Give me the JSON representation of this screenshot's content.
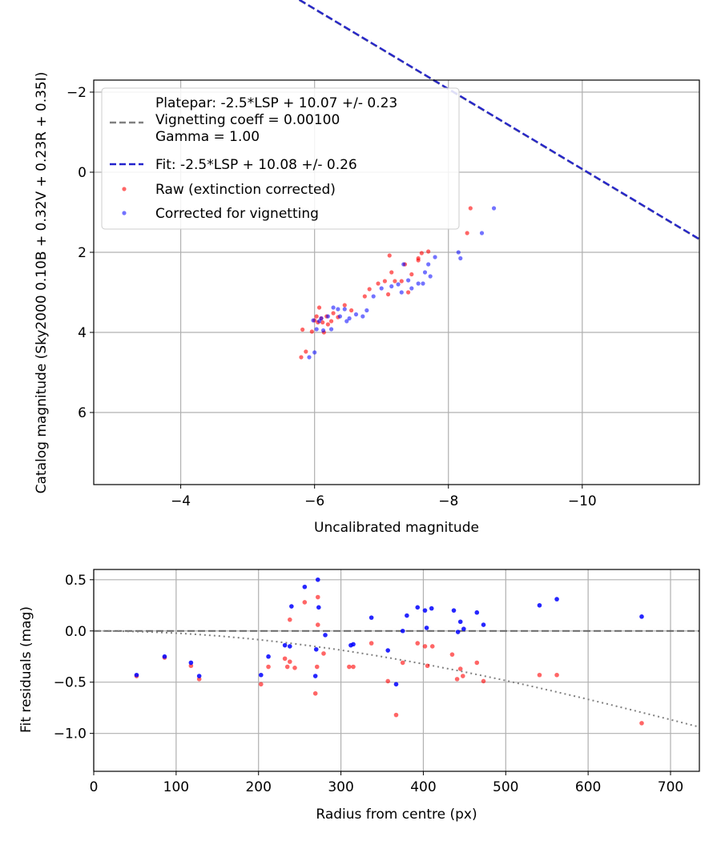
{
  "colors": {
    "raw": "#ff0000",
    "corrected": "#0000ff",
    "corrected_top": "#3333ff",
    "platepar_line": "#808080",
    "fit_line": "#2222cc",
    "grid": "#b0b0b0",
    "zero_line": "#555555"
  },
  "chart_data": [
    {
      "type": "scatter",
      "xlabel": "Uncalibrated magnitude",
      "ylabel": "Catalog magnitude (Sky2000 0.10B + 0.32V + 0.23R + 0.35I)",
      "xlim": [
        -2.7,
        -11.75
      ],
      "ylim": [
        7.8,
        -2.3
      ],
      "x_inverted": true,
      "y_inverted": true,
      "xticks": [
        -4,
        -6,
        -8,
        -10
      ],
      "xtick_labels": [
        "−4",
        "−6",
        "−8",
        "−10"
      ],
      "yticks": [
        -2,
        0,
        2,
        4,
        6
      ],
      "ytick_labels": [
        "−2",
        "0",
        "2",
        "4",
        "6"
      ],
      "grid": true,
      "legend": {
        "placement": "top-left",
        "entries": [
          {
            "kind": "line-multi",
            "lines": [
              "Platepar: -2.5*LSP + 10.07 +/- 0.23",
              "Vignetting coeff = 0.00100",
              "Gamma = 1.00"
            ],
            "color": "#808080",
            "dash": true
          },
          {
            "kind": "line",
            "label": "Fit: -2.5*LSP + 10.08 +/- 0.26",
            "color": "#2222cc",
            "dash": true
          },
          {
            "kind": "marker",
            "label": "Raw (extinction corrected)",
            "color": "#ff0000"
          },
          {
            "kind": "marker",
            "label": "Corrected for vignetting",
            "color": "#0000ff"
          }
        ]
      },
      "lines": [
        {
          "name": "Platepar: -2.5*LSP + 10.07 +/- 0.23",
          "slope": -1,
          "intercept": -10.07,
          "x": [
            -2.7,
            -11.75
          ],
          "color": "#808080",
          "style": "dashed"
        },
        {
          "name": "Fit: -2.5*LSP + 10.08 +/- 0.26",
          "slope": -1,
          "intercept": -10.08,
          "x": [
            -2.7,
            -11.75
          ],
          "color": "#2222cc",
          "style": "dashed"
        }
      ],
      "series": [
        {
          "name": "Raw (extinction corrected)",
          "color": "#ff0000",
          "points": [
            [
              -5.8,
              4.62
            ],
            [
              -5.87,
              4.48
            ],
            [
              -5.82,
              3.93
            ],
            [
              -5.96,
              3.98
            ],
            [
              -6.0,
              3.7
            ],
            [
              -6.03,
              3.6
            ],
            [
              -6.05,
              3.75
            ],
            [
              -6.07,
              3.38
            ],
            [
              -6.1,
              3.65
            ],
            [
              -6.12,
              3.75
            ],
            [
              -6.14,
              4.0
            ],
            [
              -6.18,
              3.6
            ],
            [
              -6.2,
              3.8
            ],
            [
              -6.25,
              3.72
            ],
            [
              -6.28,
              3.52
            ],
            [
              -6.35,
              3.62
            ],
            [
              -6.45,
              3.32
            ],
            [
              -6.55,
              3.45
            ],
            [
              -6.75,
              3.1
            ],
            [
              -6.82,
              2.92
            ],
            [
              -6.95,
              2.78
            ],
            [
              -7.05,
              2.72
            ],
            [
              -7.1,
              3.05
            ],
            [
              -7.12,
              2.08
            ],
            [
              -7.15,
              2.5
            ],
            [
              -7.2,
              2.72
            ],
            [
              -7.3,
              2.72
            ],
            [
              -7.35,
              2.3
            ],
            [
              -7.4,
              3.0
            ],
            [
              -7.45,
              2.55
            ],
            [
              -7.55,
              2.2
            ],
            [
              -7.55,
              2.15
            ],
            [
              -7.6,
              2.02
            ],
            [
              -7.7,
              1.98
            ],
            [
              -8.28,
              1.52
            ],
            [
              -8.33,
              0.9
            ]
          ]
        },
        {
          "name": "Corrected for vignetting",
          "color": "#0000ff",
          "points": [
            [
              -5.92,
              4.62
            ],
            [
              -5.98,
              3.7
            ],
            [
              -6.0,
              4.5
            ],
            [
              -6.03,
              3.92
            ],
            [
              -6.07,
              3.72
            ],
            [
              -6.1,
              3.65
            ],
            [
              -6.13,
              3.95
            ],
            [
              -6.2,
              3.6
            ],
            [
              -6.25,
              3.92
            ],
            [
              -6.28,
              3.38
            ],
            [
              -6.35,
              3.42
            ],
            [
              -6.38,
              3.6
            ],
            [
              -6.45,
              3.42
            ],
            [
              -6.48,
              3.72
            ],
            [
              -6.52,
              3.65
            ],
            [
              -6.62,
              3.55
            ],
            [
              -6.72,
              3.6
            ],
            [
              -6.78,
              3.45
            ],
            [
              -6.88,
              3.1
            ],
            [
              -7.0,
              2.9
            ],
            [
              -7.15,
              2.85
            ],
            [
              -7.25,
              2.8
            ],
            [
              -7.3,
              3.0
            ],
            [
              -7.33,
              2.3
            ],
            [
              -7.4,
              2.7
            ],
            [
              -7.45,
              2.9
            ],
            [
              -7.55,
              2.78
            ],
            [
              -7.62,
              2.78
            ],
            [
              -7.65,
              2.5
            ],
            [
              -7.7,
              2.3
            ],
            [
              -7.73,
              2.6
            ],
            [
              -7.8,
              2.12
            ],
            [
              -8.15,
              2.0
            ],
            [
              -8.18,
              2.15
            ],
            [
              -8.5,
              1.52
            ],
            [
              -8.68,
              0.9
            ]
          ]
        }
      ]
    },
    {
      "type": "scatter",
      "xlabel": "Radius from centre (px)",
      "ylabel": "Fit residuals (mag)",
      "xlim": [
        0,
        735
      ],
      "ylim": [
        -1.37,
        0.6
      ],
      "xticks": [
        0,
        100,
        200,
        300,
        400,
        500,
        600,
        700
      ],
      "xtick_labels": [
        "0",
        "100",
        "200",
        "300",
        "400",
        "500",
        "600",
        "700"
      ],
      "yticks": [
        0.5,
        0.0,
        -0.5,
        -1.0
      ],
      "ytick_labels": [
        "0.5",
        "0.0",
        "−0.5",
        "−1.0"
      ],
      "grid": true,
      "lines": [
        {
          "name": "zero",
          "y": 0.0,
          "color": "#555555",
          "style": "dashed"
        },
        {
          "name": "vignetting curve",
          "color": "#808080",
          "style": "dotted",
          "model": "-2.5*log10(cos^4(atan(0.00100*r)))"
        }
      ],
      "series": [
        {
          "name": "Raw (extinction corrected)",
          "color": "#ff0000",
          "points": [
            [
              52,
              -0.44
            ],
            [
              86,
              -0.26
            ],
            [
              118,
              -0.34
            ],
            [
              128,
              -0.47
            ],
            [
              203,
              -0.52
            ],
            [
              212,
              -0.35
            ],
            [
              232,
              -0.27
            ],
            [
              235,
              -0.35
            ],
            [
              238,
              -0.3
            ],
            [
              238,
              0.11
            ],
            [
              244,
              -0.36
            ],
            [
              256,
              0.28
            ],
            [
              269,
              -0.61
            ],
            [
              271,
              -0.35
            ],
            [
              272,
              0.33
            ],
            [
              272,
              0.06
            ],
            [
              279,
              -0.22
            ],
            [
              310,
              -0.35
            ],
            [
              315,
              -0.35
            ],
            [
              337,
              -0.12
            ],
            [
              357,
              -0.49
            ],
            [
              367,
              -0.82
            ],
            [
              375,
              -0.31
            ],
            [
              393,
              -0.12
            ],
            [
              402,
              -0.15
            ],
            [
              405,
              -0.34
            ],
            [
              411,
              -0.15
            ],
            [
              435,
              -0.23
            ],
            [
              441,
              -0.47
            ],
            [
              445,
              -0.37
            ],
            [
              448,
              -0.44
            ],
            [
              465,
              -0.31
            ],
            [
              473,
              -0.49
            ],
            [
              541,
              -0.43
            ],
            [
              562,
              -0.43
            ],
            [
              665,
              -0.9
            ]
          ]
        },
        {
          "name": "Corrected for vignetting",
          "color": "#0000ff",
          "points": [
            [
              52,
              -0.43
            ],
            [
              86,
              -0.25
            ],
            [
              118,
              -0.31
            ],
            [
              128,
              -0.44
            ],
            [
              203,
              -0.43
            ],
            [
              212,
              -0.25
            ],
            [
              232,
              -0.14
            ],
            [
              238,
              -0.15
            ],
            [
              240,
              0.24
            ],
            [
              256,
              0.43
            ],
            [
              269,
              -0.44
            ],
            [
              270,
              -0.18
            ],
            [
              272,
              0.5
            ],
            [
              273,
              0.23
            ],
            [
              281,
              -0.04
            ],
            [
              312,
              -0.14
            ],
            [
              315,
              -0.13
            ],
            [
              337,
              0.13
            ],
            [
              357,
              -0.19
            ],
            [
              367,
              -0.52
            ],
            [
              375,
              0.0
            ],
            [
              380,
              0.15
            ],
            [
              393,
              0.23
            ],
            [
              402,
              0.2
            ],
            [
              404,
              0.03
            ],
            [
              410,
              0.22
            ],
            [
              437,
              0.2
            ],
            [
              442,
              -0.01
            ],
            [
              445,
              0.09
            ],
            [
              449,
              0.02
            ],
            [
              465,
              0.18
            ],
            [
              473,
              0.06
            ],
            [
              541,
              0.25
            ],
            [
              562,
              0.31
            ],
            [
              665,
              0.14
            ]
          ]
        }
      ]
    }
  ]
}
